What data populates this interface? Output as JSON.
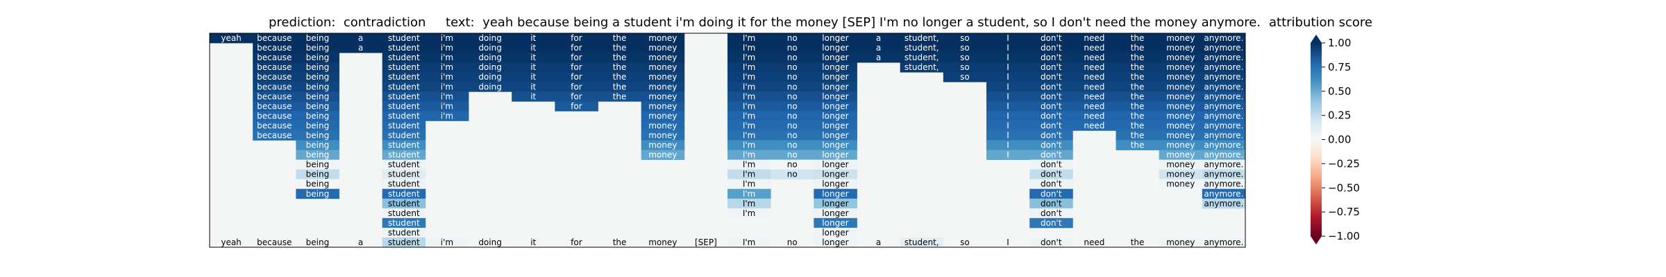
{
  "title": "prediction:  contradiction     text:  yeah because being a student i'm doing it for the money [SEP] I'm no longer a student, so I don't need the money anymore.",
  "colorbar_title": "attribution score",
  "colors": {
    "background": "#f4f6f6",
    "text_dark": "#000000",
    "text_light": "#ffffff",
    "scale": [
      "#67001f",
      "#b2182b",
      "#d6604d",
      "#f4a582",
      "#fddbc7",
      "#f7f7f7",
      "#d1e5f0",
      "#92c5de",
      "#4393c3",
      "#2166ac",
      "#053061"
    ]
  },
  "chart_data": {
    "type": "heatmap",
    "title": "prediction:  contradiction     text:  yeah because being a student i'm doing it for the money [SEP] I'm no longer a student, so I don't need the money anymore.",
    "tokens": [
      "yeah",
      "because",
      "being",
      "a",
      "student",
      "i'm",
      "doing",
      "it",
      "for",
      "the",
      "money",
      "[SEP]",
      "I'm",
      "no",
      "longer",
      "a",
      "student,",
      "so",
      "I",
      "don't",
      "need",
      "the",
      "money",
      "anymore."
    ],
    "colorbar": {
      "label": "attribution score",
      "range": [
        -1.0,
        1.0
      ],
      "ticks": [
        1.0,
        0.75,
        0.5,
        0.25,
        0.0,
        -0.25,
        -0.5,
        -0.75,
        -1.0
      ],
      "tick_labels": [
        "1.00",
        "0.75",
        "0.50",
        "0.25",
        "0.00",
        "−0.25",
        "−0.50",
        "−0.75",
        "−1.00"
      ]
    },
    "rows": [
      [
        [
          0,
          1.0
        ],
        [
          1,
          1.0
        ],
        [
          2,
          1.0
        ],
        [
          3,
          1.0
        ],
        [
          4,
          1.0
        ],
        [
          5,
          1.0
        ],
        [
          6,
          1.0
        ],
        [
          7,
          1.0
        ],
        [
          8,
          1.0
        ],
        [
          9,
          1.0
        ],
        [
          10,
          1.0
        ],
        [
          12,
          1.0
        ],
        [
          13,
          1.0
        ],
        [
          14,
          1.0
        ],
        [
          15,
          1.0
        ],
        [
          16,
          1.0
        ],
        [
          17,
          1.0
        ],
        [
          18,
          1.0
        ],
        [
          19,
          1.0
        ],
        [
          20,
          1.0
        ],
        [
          21,
          1.0
        ],
        [
          22,
          1.0
        ],
        [
          23,
          1.0
        ]
      ],
      [
        [
          1,
          1.0
        ],
        [
          2,
          1.0
        ],
        [
          3,
          1.0
        ],
        [
          4,
          1.0
        ],
        [
          5,
          1.0
        ],
        [
          6,
          1.0
        ],
        [
          7,
          1.0
        ],
        [
          8,
          1.0
        ],
        [
          9,
          1.0
        ],
        [
          10,
          1.0
        ],
        [
          12,
          1.0
        ],
        [
          13,
          1.0
        ],
        [
          14,
          1.0
        ],
        [
          15,
          1.0
        ],
        [
          16,
          1.0
        ],
        [
          17,
          1.0
        ],
        [
          18,
          1.0
        ],
        [
          19,
          1.0
        ],
        [
          20,
          1.0
        ],
        [
          21,
          1.0
        ],
        [
          22,
          1.0
        ],
        [
          23,
          1.0
        ]
      ],
      [
        [
          1,
          0.98
        ],
        [
          2,
          0.98
        ],
        [
          4,
          0.98
        ],
        [
          5,
          0.98
        ],
        [
          6,
          0.98
        ],
        [
          7,
          0.98
        ],
        [
          8,
          0.98
        ],
        [
          9,
          0.98
        ],
        [
          10,
          0.98
        ],
        [
          12,
          0.98
        ],
        [
          13,
          0.98
        ],
        [
          14,
          0.98
        ],
        [
          15,
          0.98
        ],
        [
          16,
          0.98
        ],
        [
          17,
          0.98
        ],
        [
          18,
          0.98
        ],
        [
          19,
          0.98
        ],
        [
          20,
          0.98
        ],
        [
          21,
          0.98
        ],
        [
          22,
          0.98
        ],
        [
          23,
          0.98
        ]
      ],
      [
        [
          1,
          0.96
        ],
        [
          2,
          0.96
        ],
        [
          4,
          0.96
        ],
        [
          5,
          0.96
        ],
        [
          6,
          0.96
        ],
        [
          7,
          0.96
        ],
        [
          8,
          0.96
        ],
        [
          9,
          0.96
        ],
        [
          10,
          0.96
        ],
        [
          12,
          0.96
        ],
        [
          13,
          0.96
        ],
        [
          14,
          0.96
        ],
        [
          16,
          0.96
        ],
        [
          17,
          0.96
        ],
        [
          18,
          0.96
        ],
        [
          19,
          0.96
        ],
        [
          20,
          0.96
        ],
        [
          21,
          0.96
        ],
        [
          22,
          0.96
        ],
        [
          23,
          0.96
        ]
      ],
      [
        [
          1,
          0.94
        ],
        [
          2,
          0.94
        ],
        [
          4,
          0.94
        ],
        [
          5,
          0.94
        ],
        [
          6,
          0.94
        ],
        [
          7,
          0.94
        ],
        [
          8,
          0.94
        ],
        [
          9,
          0.94
        ],
        [
          10,
          0.94
        ],
        [
          12,
          0.94
        ],
        [
          13,
          0.94
        ],
        [
          14,
          0.94
        ],
        [
          17,
          0.94
        ],
        [
          18,
          0.94
        ],
        [
          19,
          0.94
        ],
        [
          20,
          0.94
        ],
        [
          21,
          0.94
        ],
        [
          22,
          0.94
        ],
        [
          23,
          0.94
        ]
      ],
      [
        [
          1,
          0.92
        ],
        [
          2,
          0.92
        ],
        [
          4,
          0.92
        ],
        [
          5,
          0.92
        ],
        [
          6,
          0.92
        ],
        [
          7,
          0.92
        ],
        [
          8,
          0.92
        ],
        [
          9,
          0.92
        ],
        [
          10,
          0.92
        ],
        [
          12,
          0.92
        ],
        [
          13,
          0.92
        ],
        [
          14,
          0.92
        ],
        [
          18,
          0.92
        ],
        [
          19,
          0.92
        ],
        [
          20,
          0.92
        ],
        [
          21,
          0.92
        ],
        [
          22,
          0.92
        ],
        [
          23,
          0.92
        ]
      ],
      [
        [
          1,
          0.88
        ],
        [
          2,
          0.88
        ],
        [
          4,
          0.88
        ],
        [
          5,
          0.88
        ],
        [
          7,
          0.88
        ],
        [
          8,
          0.88
        ],
        [
          9,
          0.88
        ],
        [
          10,
          0.88
        ],
        [
          12,
          0.88
        ],
        [
          13,
          0.88
        ],
        [
          14,
          0.88
        ],
        [
          18,
          0.88
        ],
        [
          19,
          0.88
        ],
        [
          20,
          0.88
        ],
        [
          21,
          0.88
        ],
        [
          22,
          0.88
        ],
        [
          23,
          0.88
        ]
      ],
      [
        [
          1,
          0.84
        ],
        [
          2,
          0.84
        ],
        [
          4,
          0.84
        ],
        [
          5,
          0.84
        ],
        [
          8,
          0.84
        ],
        [
          10,
          0.84
        ],
        [
          12,
          0.84
        ],
        [
          13,
          0.84
        ],
        [
          14,
          0.84
        ],
        [
          18,
          0.84
        ],
        [
          19,
          0.84
        ],
        [
          20,
          0.84
        ],
        [
          21,
          0.84
        ],
        [
          22,
          0.84
        ],
        [
          23,
          0.84
        ]
      ],
      [
        [
          1,
          0.8
        ],
        [
          2,
          0.8
        ],
        [
          4,
          0.8
        ],
        [
          5,
          0.8
        ],
        [
          10,
          0.8
        ],
        [
          12,
          0.8
        ],
        [
          13,
          0.8
        ],
        [
          14,
          0.8
        ],
        [
          18,
          0.8
        ],
        [
          19,
          0.8
        ],
        [
          20,
          0.8
        ],
        [
          21,
          0.8
        ],
        [
          22,
          0.8
        ],
        [
          23,
          0.8
        ]
      ],
      [
        [
          1,
          0.78
        ],
        [
          2,
          0.78
        ],
        [
          4,
          0.78
        ],
        [
          10,
          0.78
        ],
        [
          12,
          0.78
        ],
        [
          13,
          0.78
        ],
        [
          14,
          0.78
        ],
        [
          18,
          0.78
        ],
        [
          19,
          0.78
        ],
        [
          20,
          0.78
        ],
        [
          21,
          0.78
        ],
        [
          22,
          0.78
        ],
        [
          23,
          0.78
        ]
      ],
      [
        [
          1,
          0.75
        ],
        [
          2,
          0.75
        ],
        [
          4,
          0.75
        ],
        [
          10,
          0.75
        ],
        [
          12,
          0.75
        ],
        [
          13,
          0.75
        ],
        [
          14,
          0.75
        ],
        [
          18,
          0.75
        ],
        [
          19,
          0.75
        ],
        [
          21,
          0.75
        ],
        [
          22,
          0.75
        ],
        [
          23,
          0.75
        ]
      ],
      [
        [
          2,
          0.62
        ],
        [
          4,
          0.62
        ],
        [
          10,
          0.62
        ],
        [
          12,
          0.62
        ],
        [
          13,
          0.62
        ],
        [
          14,
          0.62
        ],
        [
          18,
          0.62
        ],
        [
          19,
          0.62
        ],
        [
          21,
          0.62
        ],
        [
          22,
          0.62
        ],
        [
          23,
          0.62
        ]
      ],
      [
        [
          2,
          0.52
        ],
        [
          4,
          0.52
        ],
        [
          10,
          0.52
        ],
        [
          12,
          0.52
        ],
        [
          13,
          0.52
        ],
        [
          14,
          0.52
        ],
        [
          18,
          0.52
        ],
        [
          19,
          0.52
        ],
        [
          22,
          0.52
        ],
        [
          23,
          0.52
        ]
      ],
      [
        [
          2,
          0.03
        ],
        [
          4,
          0.05
        ],
        [
          12,
          0.05
        ],
        [
          13,
          0.02
        ],
        [
          14,
          0.05
        ],
        [
          19,
          0.05
        ],
        [
          22,
          0.05
        ],
        [
          23,
          0.05
        ]
      ],
      [
        [
          2,
          0.25
        ],
        [
          4,
          0.12
        ],
        [
          12,
          0.25
        ],
        [
          13,
          0.2
        ],
        [
          14,
          0.22
        ],
        [
          19,
          0.25
        ],
        [
          22,
          0.2
        ],
        [
          23,
          0.25
        ]
      ],
      [
        [
          2,
          0.02
        ],
        [
          4,
          0.05
        ],
        [
          12,
          0.03
        ],
        [
          14,
          0.05
        ],
        [
          19,
          0.05
        ],
        [
          22,
          0.03
        ],
        [
          23,
          0.05
        ]
      ],
      [
        [
          2,
          0.78
        ],
        [
          4,
          0.78
        ],
        [
          12,
          0.55
        ],
        [
          14,
          0.78
        ],
        [
          19,
          0.78
        ],
        [
          23,
          0.78
        ]
      ],
      [
        [
          4,
          0.42
        ],
        [
          12,
          0.28
        ],
        [
          14,
          0.4
        ],
        [
          19,
          0.42
        ],
        [
          23,
          0.28
        ]
      ],
      [
        [
          4,
          0.03
        ],
        [
          12,
          0.03
        ],
        [
          14,
          0.05
        ],
        [
          19,
          0.03
        ]
      ],
      [
        [
          4,
          0.72
        ],
        [
          14,
          0.72
        ],
        [
          19,
          0.72
        ]
      ],
      [
        [
          4,
          0.05
        ],
        [
          14,
          0.03
        ]
      ],
      [
        [
          0,
          0.02
        ],
        [
          1,
          0.02
        ],
        [
          2,
          0.02
        ],
        [
          3,
          0.02
        ],
        [
          4,
          0.28
        ],
        [
          5,
          0.05
        ],
        [
          6,
          0.02
        ],
        [
          7,
          0.02
        ],
        [
          8,
          0.02
        ],
        [
          9,
          0.02
        ],
        [
          10,
          0.02
        ],
        [
          11,
          0.02
        ],
        [
          12,
          0.05
        ],
        [
          13,
          0.02
        ],
        [
          14,
          0.05
        ],
        [
          15,
          0.02
        ],
        [
          16,
          0.1
        ],
        [
          17,
          0.02
        ],
        [
          18,
          0.02
        ],
        [
          19,
          0.05
        ],
        [
          20,
          0.02
        ],
        [
          21,
          0.02
        ],
        [
          22,
          0.05
        ],
        [
          23,
          0.05
        ]
      ]
    ]
  }
}
